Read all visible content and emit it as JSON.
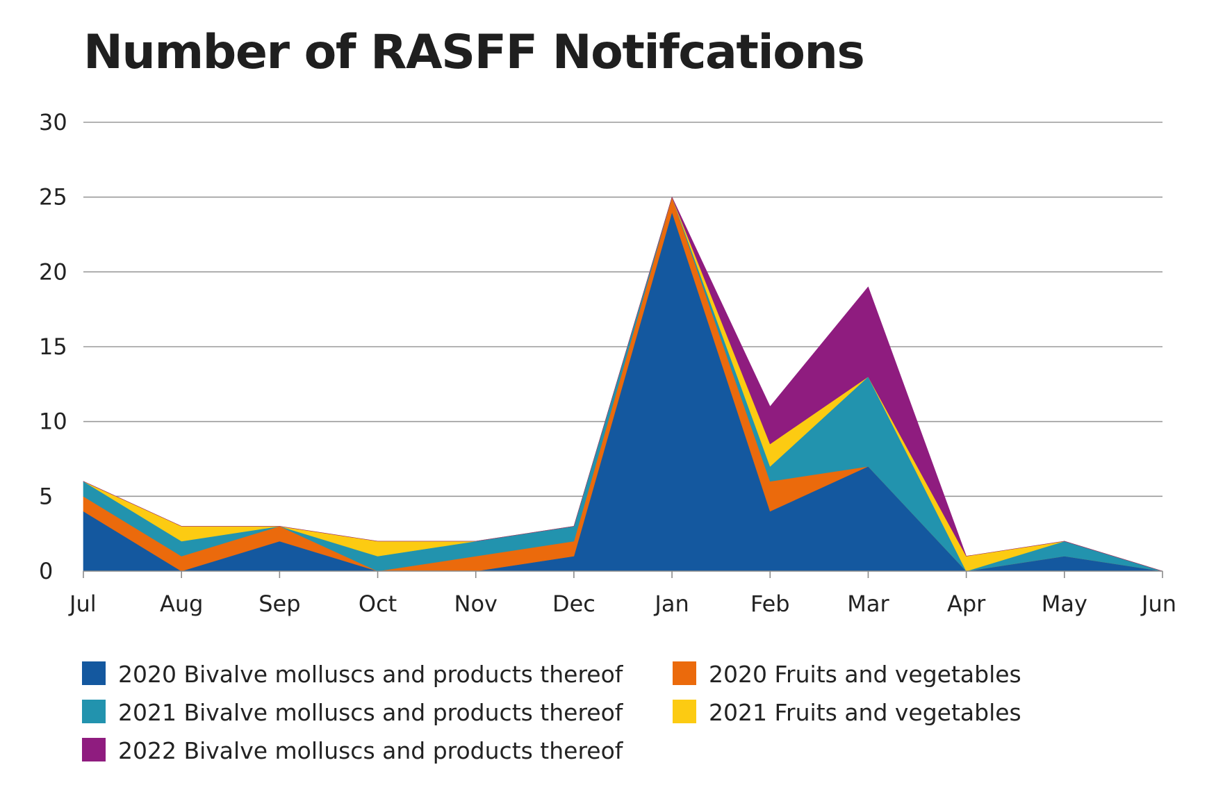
{
  "chart_data": {
    "type": "area",
    "stacked": true,
    "title": "Number of RASFF Notifcations",
    "categories": [
      "Jul",
      "Aug",
      "Sep",
      "Oct",
      "Nov",
      "Dec",
      "Jan",
      "Feb",
      "Mar",
      "Apr",
      "May",
      "Jun"
    ],
    "yticks": [
      0,
      5,
      10,
      15,
      20,
      25,
      30
    ],
    "ylim": [
      0,
      30
    ],
    "grid": true,
    "legend_position": "bottom",
    "series": [
      {
        "name": "2020 Bivalve molluscs and products thereof",
        "color": "#14589f",
        "values": [
          4,
          0,
          2,
          0,
          0,
          1,
          24,
          4,
          7,
          0,
          1,
          0
        ]
      },
      {
        "name": "2020 Fruits and vegetables",
        "color": "#eb6a0c",
        "values": [
          1,
          1,
          1,
          0,
          1,
          1,
          1,
          2,
          0,
          0,
          0,
          0
        ]
      },
      {
        "name": "2021 Bivalve molluscs and products thereof",
        "color": "#2293ae",
        "values": [
          1,
          1,
          0,
          1,
          1,
          1,
          0,
          1,
          6,
          0,
          1,
          0
        ]
      },
      {
        "name": "2021 Fruits and vegetables",
        "color": "#fccb12",
        "values": [
          0,
          1,
          0,
          1,
          0,
          0,
          0,
          1.5,
          0,
          1,
          0,
          0
        ]
      },
      {
        "name": "2022 Bivalve molluscs and products thereof",
        "color": "#8f1c7f",
        "values": [
          0,
          0,
          0,
          0,
          0,
          0,
          0,
          2.5,
          6,
          0,
          0,
          0
        ]
      }
    ],
    "legend_order": [
      0,
      1,
      2,
      3,
      4
    ]
  }
}
